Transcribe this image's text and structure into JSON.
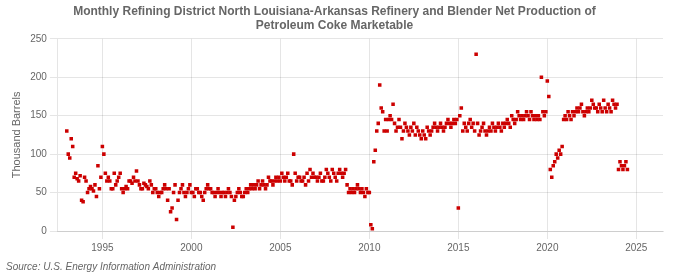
{
  "chart_data": {
    "type": "scatter",
    "title": "Monthly Refining District North Louisiana-Arkansas Refinery and Blender Net Production of\nPetroleum Coke Marketable",
    "ylabel": "Thousand Barrels",
    "annotations": [
      "Source: U.S. Energy Information Administration"
    ],
    "color": "#cc0000",
    "marker": "square",
    "grid": true,
    "xlim": [
      1992.5,
      2026.5
    ],
    "ylim": [
      0,
      250
    ],
    "xticks": [
      1995,
      2000,
      2005,
      2010,
      2015,
      2020,
      2025
    ],
    "yticks": [
      0,
      50,
      100,
      150,
      200,
      250
    ],
    "x": [
      1993.0,
      1993.083,
      1993.167,
      1993.25,
      1993.333,
      1993.417,
      1993.5,
      1993.583,
      1993.667,
      1993.75,
      1993.833,
      1993.917,
      1994.0,
      1994.083,
      1994.167,
      1994.25,
      1994.333,
      1994.417,
      1994.5,
      1994.583,
      1994.667,
      1994.75,
      1994.833,
      1994.917,
      1995.0,
      1995.083,
      1995.167,
      1995.25,
      1995.333,
      1995.417,
      1995.5,
      1995.583,
      1995.667,
      1995.75,
      1995.833,
      1995.917,
      1996.0,
      1996.083,
      1996.167,
      1996.25,
      1996.333,
      1996.417,
      1996.5,
      1996.583,
      1996.667,
      1996.75,
      1996.833,
      1996.917,
      1997.0,
      1997.083,
      1997.167,
      1997.25,
      1997.333,
      1997.417,
      1997.5,
      1997.583,
      1997.667,
      1997.75,
      1997.833,
      1997.917,
      1998.0,
      1998.083,
      1998.167,
      1998.25,
      1998.333,
      1998.417,
      1998.5,
      1998.583,
      1998.667,
      1998.75,
      1998.833,
      1998.917,
      1999.0,
      1999.083,
      1999.167,
      1999.25,
      1999.333,
      1999.417,
      1999.5,
      1999.583,
      1999.667,
      1999.75,
      1999.833,
      1999.917,
      2000.0,
      2000.083,
      2000.167,
      2000.25,
      2000.333,
      2000.417,
      2000.5,
      2000.583,
      2000.667,
      2000.75,
      2000.833,
      2000.917,
      2001.0,
      2001.083,
      2001.167,
      2001.25,
      2001.333,
      2001.417,
      2001.5,
      2001.583,
      2001.667,
      2001.75,
      2001.833,
      2001.917,
      2002.0,
      2002.083,
      2002.167,
      2002.25,
      2002.333,
      2002.417,
      2002.5,
      2002.583,
      2002.667,
      2002.75,
      2002.833,
      2002.917,
      2003.0,
      2003.083,
      2003.167,
      2003.25,
      2003.333,
      2003.417,
      2003.5,
      2003.583,
      2003.667,
      2003.75,
      2003.833,
      2003.917,
      2004.0,
      2004.083,
      2004.167,
      2004.25,
      2004.333,
      2004.417,
      2004.5,
      2004.583,
      2004.667,
      2004.75,
      2004.833,
      2004.917,
      2005.0,
      2005.083,
      2005.167,
      2005.25,
      2005.333,
      2005.417,
      2005.5,
      2005.583,
      2005.667,
      2005.75,
      2005.833,
      2005.917,
      2006.0,
      2006.083,
      2006.167,
      2006.25,
      2006.333,
      2006.417,
      2006.5,
      2006.583,
      2006.667,
      2006.75,
      2006.833,
      2006.917,
      2007.0,
      2007.083,
      2007.167,
      2007.25,
      2007.333,
      2007.417,
      2007.5,
      2007.583,
      2007.667,
      2007.75,
      2007.833,
      2007.917,
      2008.0,
      2008.083,
      2008.167,
      2008.25,
      2008.333,
      2008.417,
      2008.5,
      2008.583,
      2008.667,
      2008.75,
      2008.833,
      2008.917,
      2009.0,
      2009.083,
      2009.167,
      2009.25,
      2009.333,
      2009.417,
      2009.5,
      2009.583,
      2009.667,
      2009.75,
      2009.833,
      2009.917,
      2010.0,
      2010.083,
      2010.167,
      2010.25,
      2010.333,
      2010.417,
      2010.5,
      2010.583,
      2010.667,
      2010.75,
      2010.833,
      2010.917,
      2011.0,
      2011.083,
      2011.167,
      2011.25,
      2011.333,
      2011.417,
      2011.5,
      2011.583,
      2011.667,
      2011.75,
      2011.833,
      2011.917,
      2012.0,
      2012.083,
      2012.167,
      2012.25,
      2012.333,
      2012.417,
      2012.5,
      2012.583,
      2012.667,
      2012.75,
      2012.833,
      2012.917,
      2013.0,
      2013.083,
      2013.167,
      2013.25,
      2013.333,
      2013.417,
      2013.5,
      2013.583,
      2013.667,
      2013.75,
      2013.833,
      2013.917,
      2014.0,
      2014.083,
      2014.167,
      2014.25,
      2014.333,
      2014.417,
      2014.5,
      2014.583,
      2014.667,
      2014.75,
      2014.833,
      2014.917,
      2015.0,
      2015.083,
      2015.167,
      2015.25,
      2015.333,
      2015.417,
      2015.5,
      2015.583,
      2015.667,
      2015.75,
      2015.833,
      2015.917,
      2016.0,
      2016.083,
      2016.167,
      2016.25,
      2016.333,
      2016.417,
      2016.5,
      2016.583,
      2016.667,
      2016.75,
      2016.833,
      2016.917,
      2017.0,
      2017.083,
      2017.167,
      2017.25,
      2017.333,
      2017.417,
      2017.5,
      2017.583,
      2017.667,
      2017.75,
      2017.833,
      2017.917,
      2018.0,
      2018.083,
      2018.167,
      2018.25,
      2018.333,
      2018.417,
      2018.5,
      2018.583,
      2018.667,
      2018.75,
      2018.833,
      2018.917,
      2019.0,
      2019.083,
      2019.167,
      2019.25,
      2019.333,
      2019.417,
      2019.5,
      2019.583,
      2019.667,
      2019.75,
      2019.833,
      2019.917,
      2020.0,
      2020.083,
      2020.167,
      2020.25,
      2020.333,
      2020.417,
      2020.5,
      2020.583,
      2020.667,
      2020.75,
      2020.833,
      2020.917,
      2021.0,
      2021.083,
      2021.167,
      2021.25,
      2021.333,
      2021.417,
      2021.5,
      2021.583,
      2021.667,
      2021.75,
      2021.833,
      2021.917,
      2022.0,
      2022.083,
      2022.167,
      2022.25,
      2022.333,
      2022.417,
      2022.5,
      2022.583,
      2022.667,
      2022.75,
      2022.833,
      2022.917,
      2023.0,
      2023.083,
      2023.167,
      2023.25,
      2023.333,
      2023.417,
      2023.5,
      2023.583,
      2023.667,
      2023.75,
      2023.833,
      2023.917,
      2024.0,
      2024.083,
      2024.167,
      2024.25,
      2024.333,
      2024.417,
      2024.5
    ],
    "values": [
      130,
      100,
      95,
      120,
      110,
      70,
      75,
      68,
      65,
      72,
      40,
      38,
      70,
      65,
      50,
      55,
      58,
      55,
      52,
      60,
      45,
      85,
      55,
      70,
      110,
      100,
      75,
      65,
      70,
      65,
      55,
      55,
      75,
      60,
      65,
      70,
      75,
      55,
      50,
      55,
      58,
      55,
      65,
      65,
      62,
      70,
      65,
      78,
      65,
      60,
      55,
      55,
      62,
      60,
      58,
      55,
      65,
      60,
      50,
      55,
      55,
      50,
      45,
      50,
      50,
      55,
      60,
      55,
      40,
      55,
      25,
      30,
      50,
      60,
      15,
      40,
      50,
      55,
      60,
      50,
      45,
      50,
      55,
      60,
      50,
      50,
      45,
      55,
      55,
      50,
      50,
      45,
      40,
      50,
      55,
      60,
      55,
      55,
      50,
      50,
      45,
      50,
      55,
      50,
      45,
      50,
      50,
      45,
      50,
      55,
      50,
      45,
      5,
      40,
      45,
      50,
      55,
      50,
      45,
      45,
      50,
      55,
      50,
      55,
      60,
      55,
      60,
      55,
      60,
      65,
      55,
      60,
      65,
      60,
      55,
      60,
      70,
      65,
      65,
      60,
      65,
      70,
      65,
      70,
      65,
      75,
      70,
      65,
      70,
      75,
      65,
      65,
      60,
      100,
      75,
      65,
      70,
      70,
      65,
      65,
      70,
      60,
      75,
      65,
      80,
      70,
      75,
      70,
      70,
      65,
      70,
      75,
      65,
      65,
      70,
      80,
      75,
      70,
      65,
      80,
      75,
      70,
      65,
      75,
      80,
      75,
      70,
      75,
      80,
      60,
      50,
      55,
      50,
      55,
      50,
      55,
      60,
      55,
      50,
      55,
      50,
      45,
      55,
      50,
      50,
      8,
      3,
      90,
      105,
      130,
      140,
      190,
      160,
      155,
      130,
      145,
      130,
      145,
      150,
      145,
      165,
      140,
      130,
      135,
      145,
      135,
      120,
      130,
      140,
      135,
      130,
      125,
      135,
      130,
      140,
      125,
      135,
      130,
      125,
      120,
      130,
      125,
      120,
      135,
      130,
      125,
      130,
      135,
      140,
      135,
      130,
      135,
      140,
      135,
      130,
      135,
      140,
      145,
      140,
      135,
      140,
      145,
      140,
      145,
      30,
      150,
      160,
      130,
      140,
      135,
      130,
      140,
      145,
      135,
      140,
      130,
      230,
      140,
      125,
      130,
      135,
      140,
      130,
      125,
      130,
      135,
      130,
      140,
      135,
      130,
      135,
      140,
      135,
      130,
      140,
      135,
      140,
      145,
      140,
      135,
      150,
      145,
      140,
      145,
      155,
      150,
      145,
      150,
      145,
      150,
      155,
      150,
      145,
      155,
      150,
      145,
      150,
      145,
      150,
      145,
      200,
      155,
      150,
      155,
      195,
      175,
      80,
      70,
      85,
      90,
      100,
      95,
      105,
      100,
      110,
      145,
      150,
      145,
      155,
      150,
      145,
      155,
      150,
      155,
      160,
      155,
      160,
      165,
      155,
      150,
      155,
      160,
      155,
      160,
      170,
      165,
      160,
      160,
      155,
      165,
      160,
      155,
      170,
      160,
      155,
      165,
      160,
      155,
      170,
      165,
      160,
      165,
      80,
      90,
      85,
      80,
      85,
      90,
      80
    ]
  }
}
